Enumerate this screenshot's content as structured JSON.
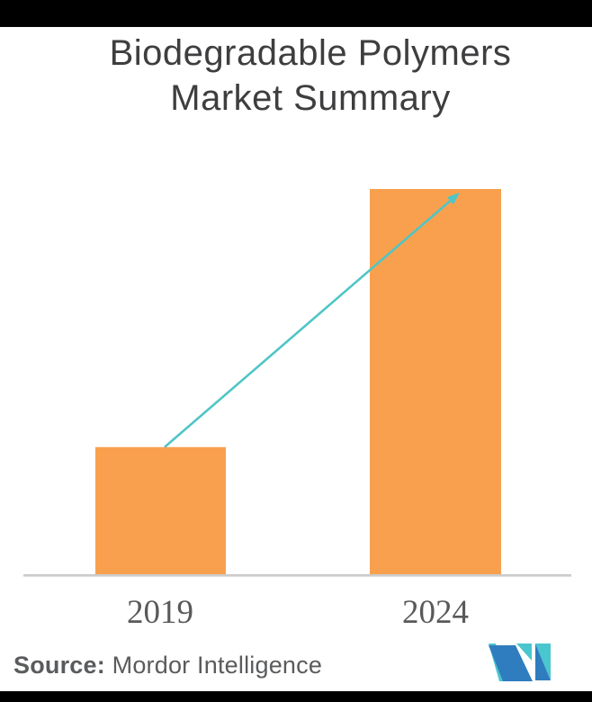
{
  "page": {
    "background": "#FFFFFF",
    "letterbox_color": "#000000"
  },
  "title": {
    "line1": "Biodegradable Polymers",
    "line2": "Market Summary",
    "color": "#3E3E40"
  },
  "chart_data": {
    "type": "bar",
    "title": "Biodegradable Polymers Market Summary",
    "categories": [
      "2019",
      "2024"
    ],
    "values": [
      33,
      100
    ],
    "values_note": "No numeric axis shown; values are relative bar heights as percent of the 2024 bar",
    "xlabel": "",
    "ylabel": "",
    "ylim": [
      0,
      100
    ],
    "grid": false,
    "legend": false,
    "bar_color": "#F9A04E",
    "axis_line_color": "#CBCBCB",
    "x_label_color": "#58595B",
    "trend_arrow": {
      "from_category": "2019",
      "to_category": "2024",
      "style": "straight arrow from top of 2019 bar to top of 2024 bar",
      "color": "#4FC5C6"
    }
  },
  "source": {
    "label": "Source:",
    "text": " Mordor Intelligence",
    "color": "#5A5B5D"
  },
  "logo": {
    "name": "Mordor Intelligence monogram",
    "teal": "#4AC6CE",
    "blue": "#2F7DBE"
  }
}
